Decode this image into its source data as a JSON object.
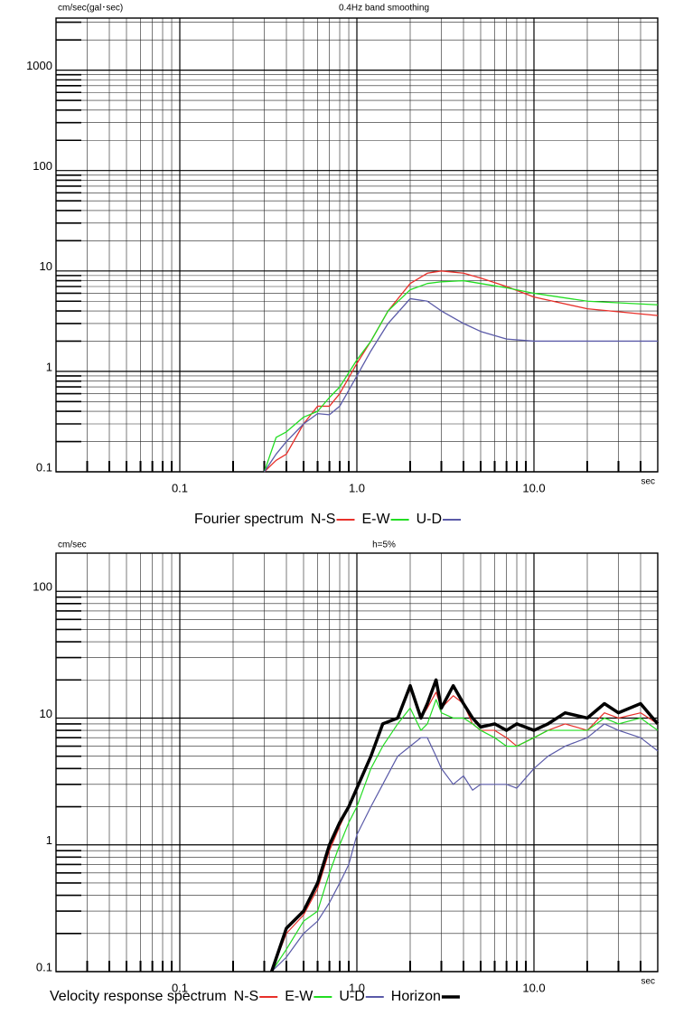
{
  "chart_data": [
    {
      "type": "line",
      "y_label": "cm/sec(gal･sec)",
      "subtitle": "0.4Hz band smoothing",
      "x_label": "sec",
      "legend_title": "Fourier spectrum",
      "log_x": true,
      "log_y": true,
      "grid": true,
      "xlim": [
        0.02,
        50
      ],
      "ylim": [
        0.1,
        3300
      ],
      "xticks": [
        0.1,
        {
          "value": 1,
          "label": "1.0"
        },
        {
          "value": 10,
          "label": "10.0"
        }
      ],
      "yticks": [
        0.1,
        1,
        10,
        100,
        1000
      ],
      "x": [
        0.3,
        0.35,
        0.4,
        0.5,
        0.6,
        0.7,
        0.8,
        1.0,
        1.2,
        1.5,
        2,
        2.5,
        3,
        4,
        5,
        7,
        10,
        20,
        50
      ],
      "series": [
        {
          "name": "N-S",
          "color": "#e8302a",
          "width": 1.3,
          "values": [
            0.1,
            0.13,
            0.15,
            0.3,
            0.45,
            0.45,
            0.6,
            1.2,
            2,
            4,
            7.5,
            9.5,
            10,
            9.5,
            8.5,
            7,
            5.5,
            4.2,
            3.6
          ]
        },
        {
          "name": "E-W",
          "color": "#22dd22",
          "width": 1.3,
          "values": [
            0.1,
            0.22,
            0.25,
            0.35,
            0.4,
            0.55,
            0.7,
            1.3,
            2,
            4,
            6.5,
            7.5,
            7.8,
            8,
            7.5,
            6.8,
            6,
            5,
            4.6
          ]
        },
        {
          "name": "U-D",
          "color": "#5a5aa8",
          "width": 1.3,
          "values": [
            0.1,
            0.15,
            0.2,
            0.3,
            0.38,
            0.37,
            0.45,
            0.9,
            1.6,
            3,
            5.3,
            5,
            4,
            3,
            2.5,
            2.1,
            2,
            2,
            2
          ]
        }
      ]
    },
    {
      "type": "line",
      "y_label": "cm/sec",
      "subtitle": "h=5%",
      "x_label": "sec",
      "legend_title": "Velocity response spectrum",
      "log_x": true,
      "log_y": true,
      "grid": true,
      "xlim": [
        0.02,
        50
      ],
      "ylim": [
        0.1,
        200
      ],
      "xticks": [
        0.1,
        {
          "value": 1,
          "label": "1.0"
        },
        {
          "value": 10,
          "label": "10.0"
        }
      ],
      "yticks": [
        0.1,
        1,
        10,
        100
      ],
      "x": [
        0.33,
        0.4,
        0.5,
        0.6,
        0.7,
        0.8,
        0.9,
        1.0,
        1.2,
        1.4,
        1.7,
        2.0,
        2.3,
        2.5,
        2.8,
        3.0,
        3.5,
        4.0,
        4.5,
        5,
        6,
        7,
        8,
        10,
        12,
        15,
        20,
        25,
        30,
        40,
        50
      ],
      "series": [
        {
          "name": "N-S",
          "color": "#e8302a",
          "width": 1.2,
          "values": [
            0.1,
            0.2,
            0.28,
            0.45,
            0.9,
            1.4,
            2,
            2.8,
            5,
            9,
            10,
            17,
            10,
            12,
            16,
            12,
            15,
            13,
            9,
            8,
            8,
            7,
            6,
            7,
            8,
            9,
            8,
            11,
            10,
            11,
            9
          ]
        },
        {
          "name": "E-W",
          "color": "#22dd22",
          "width": 1.2,
          "values": [
            0.1,
            0.15,
            0.25,
            0.3,
            0.6,
            1,
            1.5,
            2,
            4,
            6,
            9,
            12,
            8,
            9,
            14,
            11,
            10,
            10,
            9,
            8,
            7,
            6,
            6,
            7,
            8,
            8,
            8,
            10,
            9,
            10,
            8
          ]
        },
        {
          "name": "U-D",
          "color": "#5a5aa8",
          "width": 1.2,
          "values": [
            0.1,
            0.13,
            0.2,
            0.25,
            0.35,
            0.5,
            0.7,
            1.2,
            2,
            3,
            5,
            6,
            7,
            7,
            5,
            4,
            3,
            3.5,
            2.7,
            3,
            3,
            3,
            2.8,
            4,
            5,
            6,
            7,
            9,
            8,
            7,
            5.5
          ]
        },
        {
          "name": "Horizon",
          "color": "#000000",
          "width": 3.5,
          "values": [
            0.1,
            0.22,
            0.3,
            0.5,
            1,
            1.5,
            2,
            2.8,
            5,
            9,
            10,
            18,
            10,
            13,
            20,
            12,
            18,
            13,
            10,
            8.5,
            9,
            8,
            9,
            8,
            9,
            11,
            10,
            13,
            11,
            13,
            9
          ]
        }
      ]
    }
  ]
}
